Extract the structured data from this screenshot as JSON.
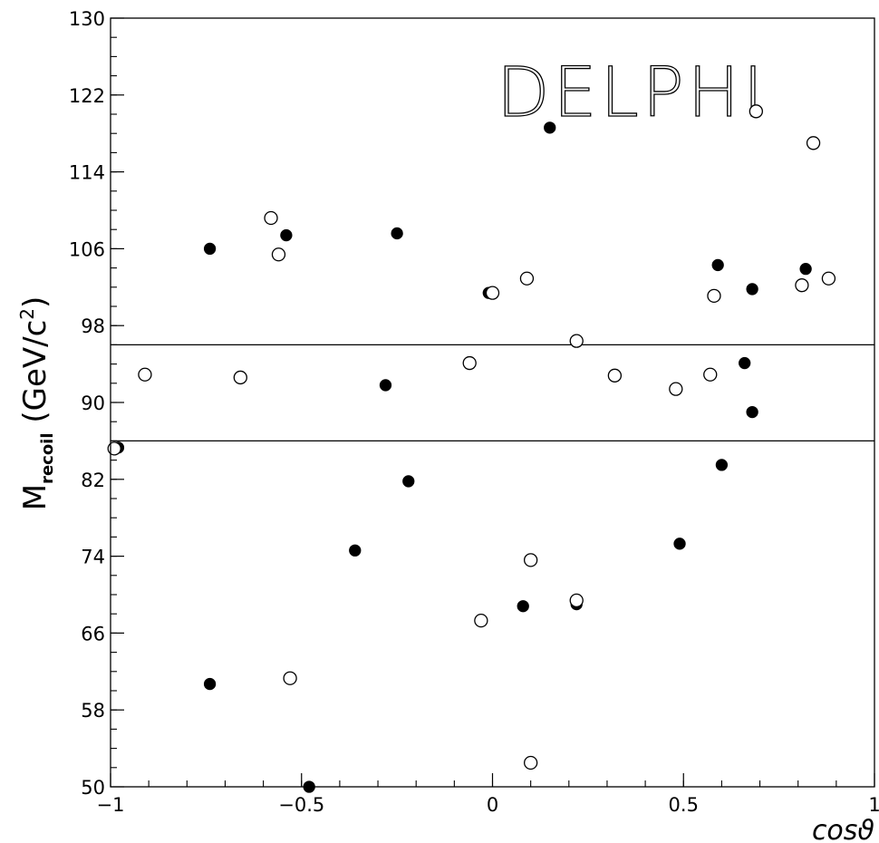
{
  "chart_data": {
    "type": "scatter",
    "title": "",
    "watermark": "DELPHI",
    "xlabel": "cosϑ",
    "ylabel": {
      "main": "M",
      "subscript": "recoil",
      "unit_open": " (GeV/c",
      "unit_sup": "2",
      "unit_close": ")"
    },
    "xlim": [
      -1,
      1
    ],
    "ylim": [
      50,
      130
    ],
    "x_ticks": [
      -1,
      -0.5,
      0,
      0.5,
      1
    ],
    "x_tick_labels": [
      "−1",
      "−0.5",
      "0",
      "0.5",
      "1"
    ],
    "y_ticks": [
      50,
      58,
      66,
      74,
      82,
      90,
      98,
      106,
      114,
      122,
      130
    ],
    "y_tick_labels": [
      "50",
      "58",
      "66",
      "74",
      "82",
      "90",
      "98",
      "106",
      "114",
      "122",
      "130"
    ],
    "x_minor_step": 0.1,
    "y_minor_step": 2,
    "grid": false,
    "reference_lines_y": [
      96,
      86
    ],
    "marker_colors": {
      "stroke": "#000000",
      "filled": "#000000",
      "open": "#ffffff"
    },
    "series": [
      {
        "marker": "filled-circle",
        "points": [
          [
            -0.98,
            85.3
          ],
          [
            -0.74,
            106.0
          ],
          [
            -0.74,
            60.7
          ],
          [
            -0.54,
            107.4
          ],
          [
            -0.48,
            50.0
          ],
          [
            -0.36,
            74.6
          ],
          [
            -0.28,
            91.8
          ],
          [
            -0.25,
            107.6
          ],
          [
            -0.22,
            81.8
          ],
          [
            -0.01,
            101.4
          ],
          [
            0.08,
            68.8
          ],
          [
            0.15,
            118.6
          ],
          [
            0.22,
            69.0
          ],
          [
            0.49,
            75.3
          ],
          [
            0.59,
            104.3
          ],
          [
            0.6,
            83.5
          ],
          [
            0.66,
            94.1
          ],
          [
            0.68,
            101.8
          ],
          [
            0.68,
            89.0
          ],
          [
            0.82,
            103.9
          ]
        ]
      },
      {
        "marker": "open-circle",
        "points": [
          [
            -0.99,
            85.2
          ],
          [
            -0.91,
            92.9
          ],
          [
            -0.66,
            92.6
          ],
          [
            -0.58,
            109.2
          ],
          [
            -0.56,
            105.4
          ],
          [
            -0.53,
            61.3
          ],
          [
            -0.06,
            94.1
          ],
          [
            -0.03,
            67.3
          ],
          [
            0.0,
            101.4
          ],
          [
            0.09,
            102.9
          ],
          [
            0.1,
            73.6
          ],
          [
            0.1,
            52.5
          ],
          [
            0.22,
            96.4
          ],
          [
            0.22,
            69.4
          ],
          [
            0.32,
            92.8
          ],
          [
            0.48,
            91.4
          ],
          [
            0.57,
            92.9
          ],
          [
            0.58,
            101.1
          ],
          [
            0.69,
            120.3
          ],
          [
            0.81,
            102.2
          ],
          [
            0.84,
            117.0
          ],
          [
            0.88,
            102.9
          ]
        ]
      }
    ]
  }
}
